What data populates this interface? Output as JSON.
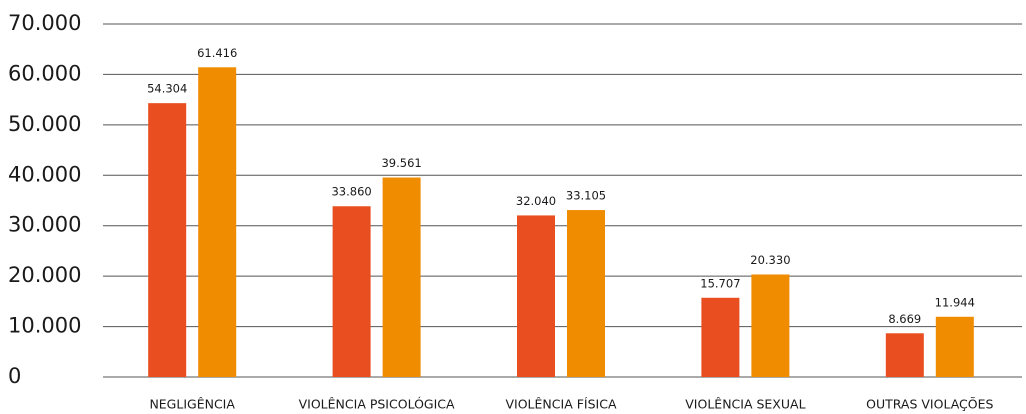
{
  "chart_data": {
    "type": "bar",
    "categories": [
      "NEGLIGÊNCIA",
      "VIOLÊNCIA PSICOLÓGICA",
      "VIOLÊNCIA FÍSICA",
      "VIOLÊNCIA SEXUAL",
      "OUTRAS VIOLAÇÕES"
    ],
    "series": [
      {
        "color": "#e84e1f",
        "values": [
          54304,
          33860,
          32040,
          15707,
          8669
        ],
        "value_labels": [
          "54.304",
          "33.860",
          "32.040",
          "15.707",
          "8.669"
        ]
      },
      {
        "color": "#f08c00",
        "values": [
          61416,
          39561,
          33105,
          20330,
          11944
        ],
        "value_labels": [
          "61.416",
          "39.561",
          "33.105",
          "20.330",
          "11.944"
        ]
      }
    ],
    "ylim": [
      0,
      70000
    ],
    "yticks": [
      {
        "value": 0,
        "label": "0"
      },
      {
        "value": 10000,
        "label": "10.000"
      },
      {
        "value": 20000,
        "label": "20.000"
      },
      {
        "value": 30000,
        "label": "30.000"
      },
      {
        "value": 40000,
        "label": "40.000"
      },
      {
        "value": 50000,
        "label": "50.000"
      },
      {
        "value": 60000,
        "label": "60.000"
      },
      {
        "value": 70000,
        "label": "70.000"
      }
    ],
    "grid": true
  }
}
